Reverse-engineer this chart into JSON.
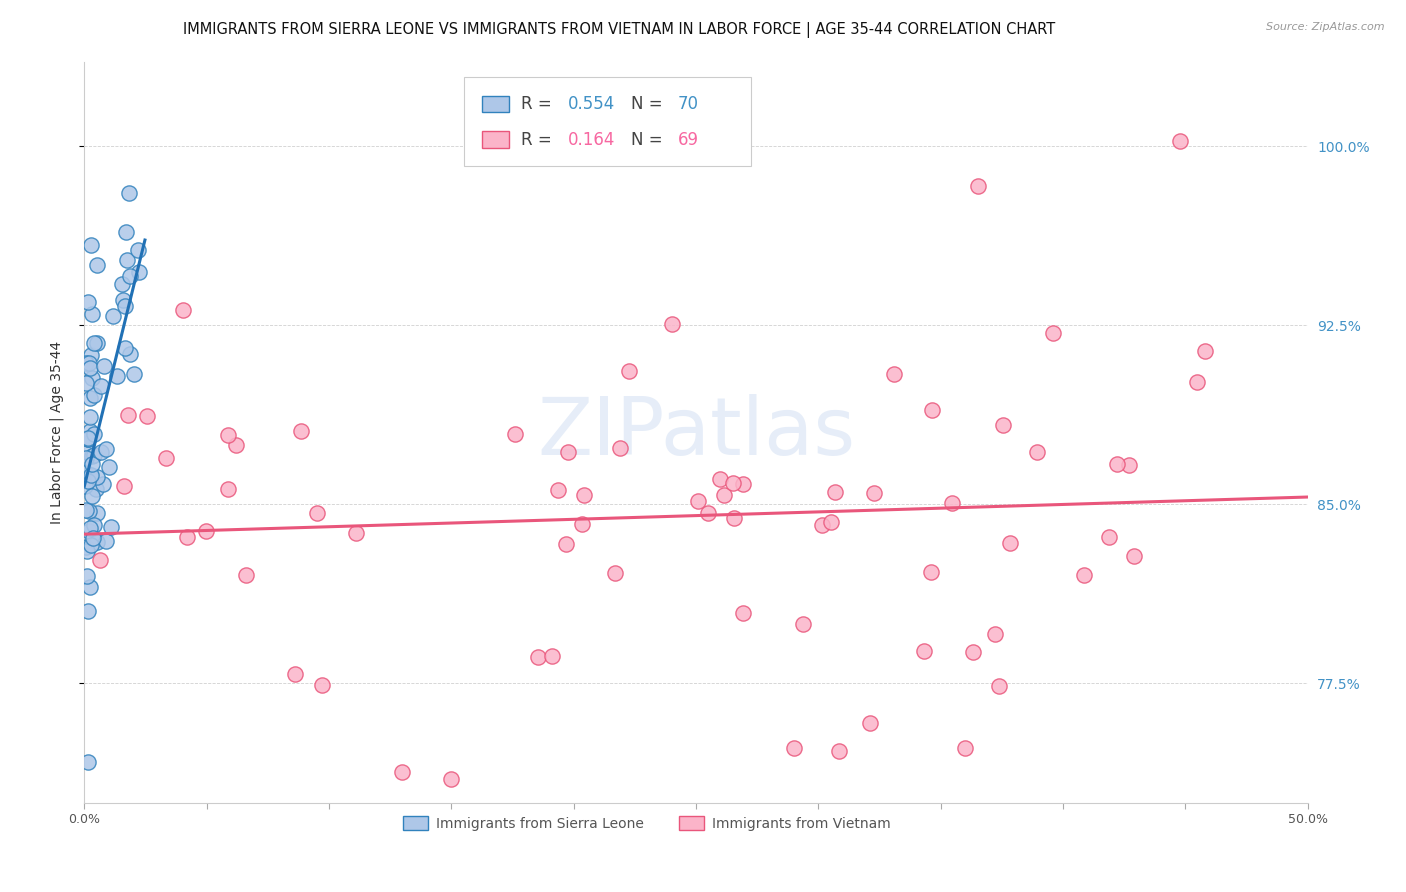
{
  "title": "IMMIGRANTS FROM SIERRA LEONE VS IMMIGRANTS FROM VIETNAM IN LABOR FORCE | AGE 35-44 CORRELATION CHART",
  "source": "Source: ZipAtlas.com",
  "ylabel": "In Labor Force | Age 35-44",
  "watermark": "ZIPatlas",
  "legend_r1": "R =",
  "legend_v1": "0.554",
  "legend_n1_label": "N =",
  "legend_n1": "70",
  "legend_r2": "R =",
  "legend_v2": "0.164",
  "legend_n2_label": "N =",
  "legend_n2": "69",
  "color_blue_fill": "#aec7e8",
  "color_blue_edge": "#3182bd",
  "color_blue_line": "#2171b5",
  "color_pink_fill": "#fbb4c9",
  "color_pink_edge": "#e9567b",
  "color_pink_line": "#e9567b",
  "color_blue_text": "#4292c6",
  "color_pink_text": "#f768a1",
  "xlim": [
    0.0,
    0.5
  ],
  "ylim": [
    0.725,
    1.035
  ],
  "title_fontsize": 10.5,
  "source_fontsize": 8,
  "axis_label_fontsize": 10,
  "tick_fontsize": 9,
  "legend_fontsize": 12
}
